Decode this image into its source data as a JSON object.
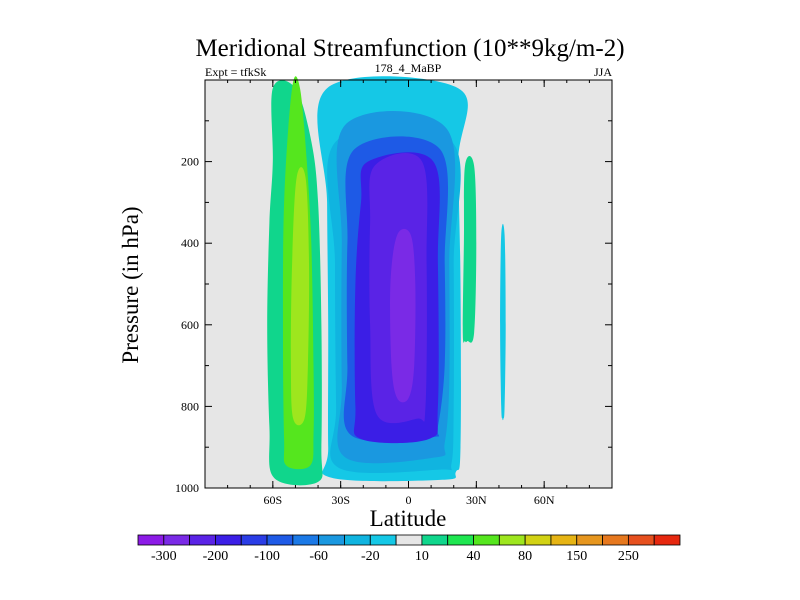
{
  "chart_data": {
    "type": "heatmap",
    "title": "Meridional Streamfunction (10**9kg/m-2)",
    "subtitle_left": "Expt = tfkSk",
    "subtitle_center": "178_4_MaBP",
    "subtitle_right": "JJA",
    "xlabel": "Latitude",
    "ylabel": "Pressure (in hPa)",
    "xlim": [
      -90,
      90
    ],
    "ylim": [
      1000,
      0
    ],
    "x_ticks": [
      {
        "value": -60,
        "label": "60S"
      },
      {
        "value": -30,
        "label": "30S"
      },
      {
        "value": 0,
        "label": "0"
      },
      {
        "value": 30,
        "label": "30N"
      },
      {
        "value": 60,
        "label": "60N"
      }
    ],
    "y_ticks": [
      {
        "value": 200,
        "label": "200"
      },
      {
        "value": 400,
        "label": "400"
      },
      {
        "value": 600,
        "label": "600"
      },
      {
        "value": 800,
        "label": "800"
      },
      {
        "value": 1000,
        "label": "1000"
      }
    ],
    "background_color": "#e6e6e6",
    "colorbar": {
      "colors": [
        "#8c1be6",
        "#7a2ae6",
        "#5a23e6",
        "#3b1ee6",
        "#2a3de6",
        "#1e5ae6",
        "#1b79e6",
        "#1a98e0",
        "#10b4e0",
        "#15c8e6",
        "#e6e6e6",
        "#10d68c",
        "#1ee650",
        "#55e61e",
        "#9ee61e",
        "#d2d214",
        "#e6b414",
        "#e6961e",
        "#e6781e",
        "#e6501e",
        "#e6280f"
      ],
      "labels": [
        "-300",
        "-200",
        "-100",
        "-60",
        "-20",
        "10",
        "40",
        "80",
        "150",
        "250"
      ]
    },
    "regions": [
      {
        "name": "sh-ferrel-outer",
        "level": 10,
        "color": "#10d68c",
        "lat_left": [
          [
            -60,
            20
          ],
          [
            -60,
            200
          ],
          [
            -61.5,
            350
          ],
          [
            -62.5,
            600
          ],
          [
            -61.5,
            850
          ],
          [
            -59.5,
            975
          ]
        ],
        "lat_right": [
          [
            -50,
            20
          ],
          [
            -43,
            150
          ],
          [
            -40,
            300
          ],
          [
            -38.5,
            600
          ],
          [
            -38.5,
            900
          ],
          [
            -40,
            985
          ]
        ]
      },
      {
        "name": "sh-ferrel-40",
        "level": 40,
        "color": "#55e61e",
        "lat_left": [
          [
            -51.5,
            20
          ],
          [
            -55,
            300
          ],
          [
            -55.5,
            650
          ],
          [
            -55,
            880
          ],
          [
            -54,
            945
          ]
        ],
        "lat_right": [
          [
            -48,
            20
          ],
          [
            -45,
            200
          ],
          [
            -43,
            400
          ],
          [
            -42,
            700
          ],
          [
            -42,
            870
          ],
          [
            -43.5,
            945
          ]
        ]
      },
      {
        "name": "sh-ferrel-80",
        "level": 80,
        "color": "#9ee61e",
        "lat_left": [
          [
            -49.5,
            240
          ],
          [
            -51.5,
            450
          ],
          [
            -52,
            700
          ],
          [
            -51,
            830
          ]
        ],
        "lat_right": [
          [
            -45.5,
            240
          ],
          [
            -44,
            450
          ],
          [
            -44.5,
            700
          ],
          [
            -46,
            830
          ]
        ]
      },
      {
        "name": "hadley-outer",
        "level": -20,
        "color": "#15c8e6",
        "lat_left": [
          [
            -36,
            20
          ],
          [
            -36,
            300
          ],
          [
            -35.5,
            600
          ],
          [
            -35.5,
            900
          ],
          [
            -34,
            975
          ]
        ],
        "lat_right": [
          [
            22,
            20
          ],
          [
            22,
            200
          ],
          [
            23,
            500
          ],
          [
            23,
            900
          ],
          [
            21,
            960
          ],
          [
            15,
            980
          ]
        ]
      },
      {
        "name": "hadley-60",
        "level": -60,
        "color": "#10b4e0",
        "lat_left": [
          [
            -32,
            150
          ],
          [
            -32.5,
            450
          ],
          [
            -32,
            800
          ],
          [
            -31,
            950
          ]
        ],
        "lat_right": [
          [
            19,
            150
          ],
          [
            20,
            450
          ],
          [
            20,
            800
          ],
          [
            19,
            940
          ],
          [
            14,
            955
          ]
        ]
      },
      {
        "name": "hadley-100",
        "level": -100,
        "color": "#1a98e0",
        "lat_left": [
          [
            -28,
            110
          ],
          [
            -29.5,
            400
          ],
          [
            -29.5,
            750
          ],
          [
            -28,
            925
          ]
        ],
        "lat_right": [
          [
            17,
            120
          ],
          [
            18,
            450
          ],
          [
            18,
            750
          ],
          [
            16,
            890
          ],
          [
            12,
            925
          ]
        ]
      },
      {
        "name": "hadley-150",
        "level": -150,
        "color": "#1e5ae6",
        "lat_left": [
          [
            -24,
            170
          ],
          [
            -27,
            400
          ],
          [
            -27,
            700
          ],
          [
            -25.5,
            870
          ]
        ],
        "lat_right": [
          [
            14,
            170
          ],
          [
            16,
            450
          ],
          [
            16,
            700
          ],
          [
            13,
            850
          ],
          [
            10,
            875
          ]
        ]
      },
      {
        "name": "hadley-200",
        "level": -200,
        "color": "#3b1ee6",
        "lat_left": [
          [
            -18,
            200
          ],
          [
            -21,
            300
          ],
          [
            -23.5,
            500
          ],
          [
            -23.5,
            800
          ],
          [
            -21,
            880
          ]
        ],
        "lat_right": [
          [
            11,
            200
          ],
          [
            13,
            450
          ],
          [
            13,
            800
          ],
          [
            9,
            880
          ]
        ]
      },
      {
        "name": "hadley-250",
        "level": -250,
        "color": "#5a23e6",
        "lat_left": [
          [
            -15,
            210
          ],
          [
            -17,
            350
          ],
          [
            -17,
            600
          ],
          [
            -14,
            820
          ]
        ],
        "lat_right": [
          [
            6,
            200
          ],
          [
            8,
            450
          ],
          [
            7.5,
            800
          ],
          [
            4,
            830
          ]
        ]
      },
      {
        "name": "hadley-300",
        "level": -300,
        "color": "#7a2ae6",
        "lat_left": [
          [
            -5,
            380
          ],
          [
            -8,
            500
          ],
          [
            -7.5,
            700
          ],
          [
            -5,
            780
          ]
        ],
        "lat_right": [
          [
            1,
            380
          ],
          [
            3,
            500
          ],
          [
            2.5,
            700
          ],
          [
            0,
            780
          ]
        ]
      },
      {
        "name": "nh-cell-positive",
        "level": 10,
        "color": "#10d68c",
        "lat_left": [
          [
            25,
            210
          ],
          [
            24.5,
            400
          ],
          [
            24,
            620
          ],
          [
            25,
            640
          ]
        ],
        "lat_right": [
          [
            29,
            210
          ],
          [
            30,
            400
          ],
          [
            29,
            620
          ],
          [
            26,
            640
          ]
        ]
      },
      {
        "name": "nh-cell-negative",
        "level": -20,
        "color": "#15c8e6",
        "lat_left": [
          [
            41,
            380
          ],
          [
            40.5,
            600
          ],
          [
            41,
            800
          ],
          [
            41.5,
            830
          ]
        ],
        "lat_right": [
          [
            42.5,
            380
          ],
          [
            43,
            600
          ],
          [
            42.5,
            800
          ],
          [
            42,
            830
          ]
        ]
      }
    ]
  }
}
